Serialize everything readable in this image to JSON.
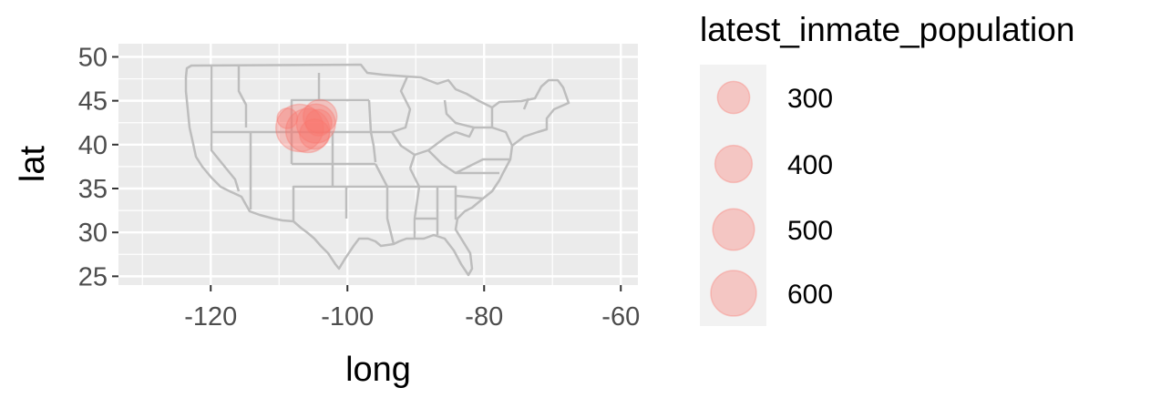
{
  "chart_data": {
    "type": "scatter",
    "title": "",
    "xlabel": "long",
    "ylabel": "lat",
    "xlim": [
      -133.5,
      -57.5
    ],
    "ylim": [
      24.0,
      51.5
    ],
    "x_ticks": [
      -120,
      -100,
      -80,
      -60
    ],
    "x_tick_labels": [
      "-120",
      "-100",
      "-80",
      "-60"
    ],
    "y_ticks": [
      25,
      30,
      35,
      40,
      45,
      50
    ],
    "y_tick_labels": [
      "25",
      "30",
      "35",
      "40",
      "45",
      "50"
    ],
    "grid": true,
    "panel_background": "#ebebeb",
    "basemap": "USA state boundaries",
    "basemap_color": "#bdbdbd",
    "point_color": "#f8766d",
    "point_opacity": 0.35,
    "size_variable": "latest_inmate_population",
    "size_range": [
      300,
      650
    ],
    "points": [
      {
        "long": -108.8,
        "lat": 43.0,
        "latest_inmate_population": 120
      },
      {
        "long": -107.0,
        "lat": 41.9,
        "latest_inmate_population": 650
      },
      {
        "long": -105.8,
        "lat": 41.6,
        "latest_inmate_population": 560
      },
      {
        "long": -104.6,
        "lat": 42.4,
        "latest_inmate_population": 440
      },
      {
        "long": -104.0,
        "lat": 43.2,
        "latest_inmate_population": 330
      },
      {
        "long": -104.2,
        "lat": 42.5,
        "latest_inmate_population": 200
      },
      {
        "long": -104.8,
        "lat": 41.2,
        "latest_inmate_population": 260
      }
    ],
    "legend": {
      "title": "latest_inmate_population",
      "position": "right",
      "entries": [
        {
          "label": "300",
          "value": 300
        },
        {
          "label": "400",
          "value": 400
        },
        {
          "label": "500",
          "value": 500
        },
        {
          "label": "600",
          "value": 600
        }
      ]
    }
  }
}
